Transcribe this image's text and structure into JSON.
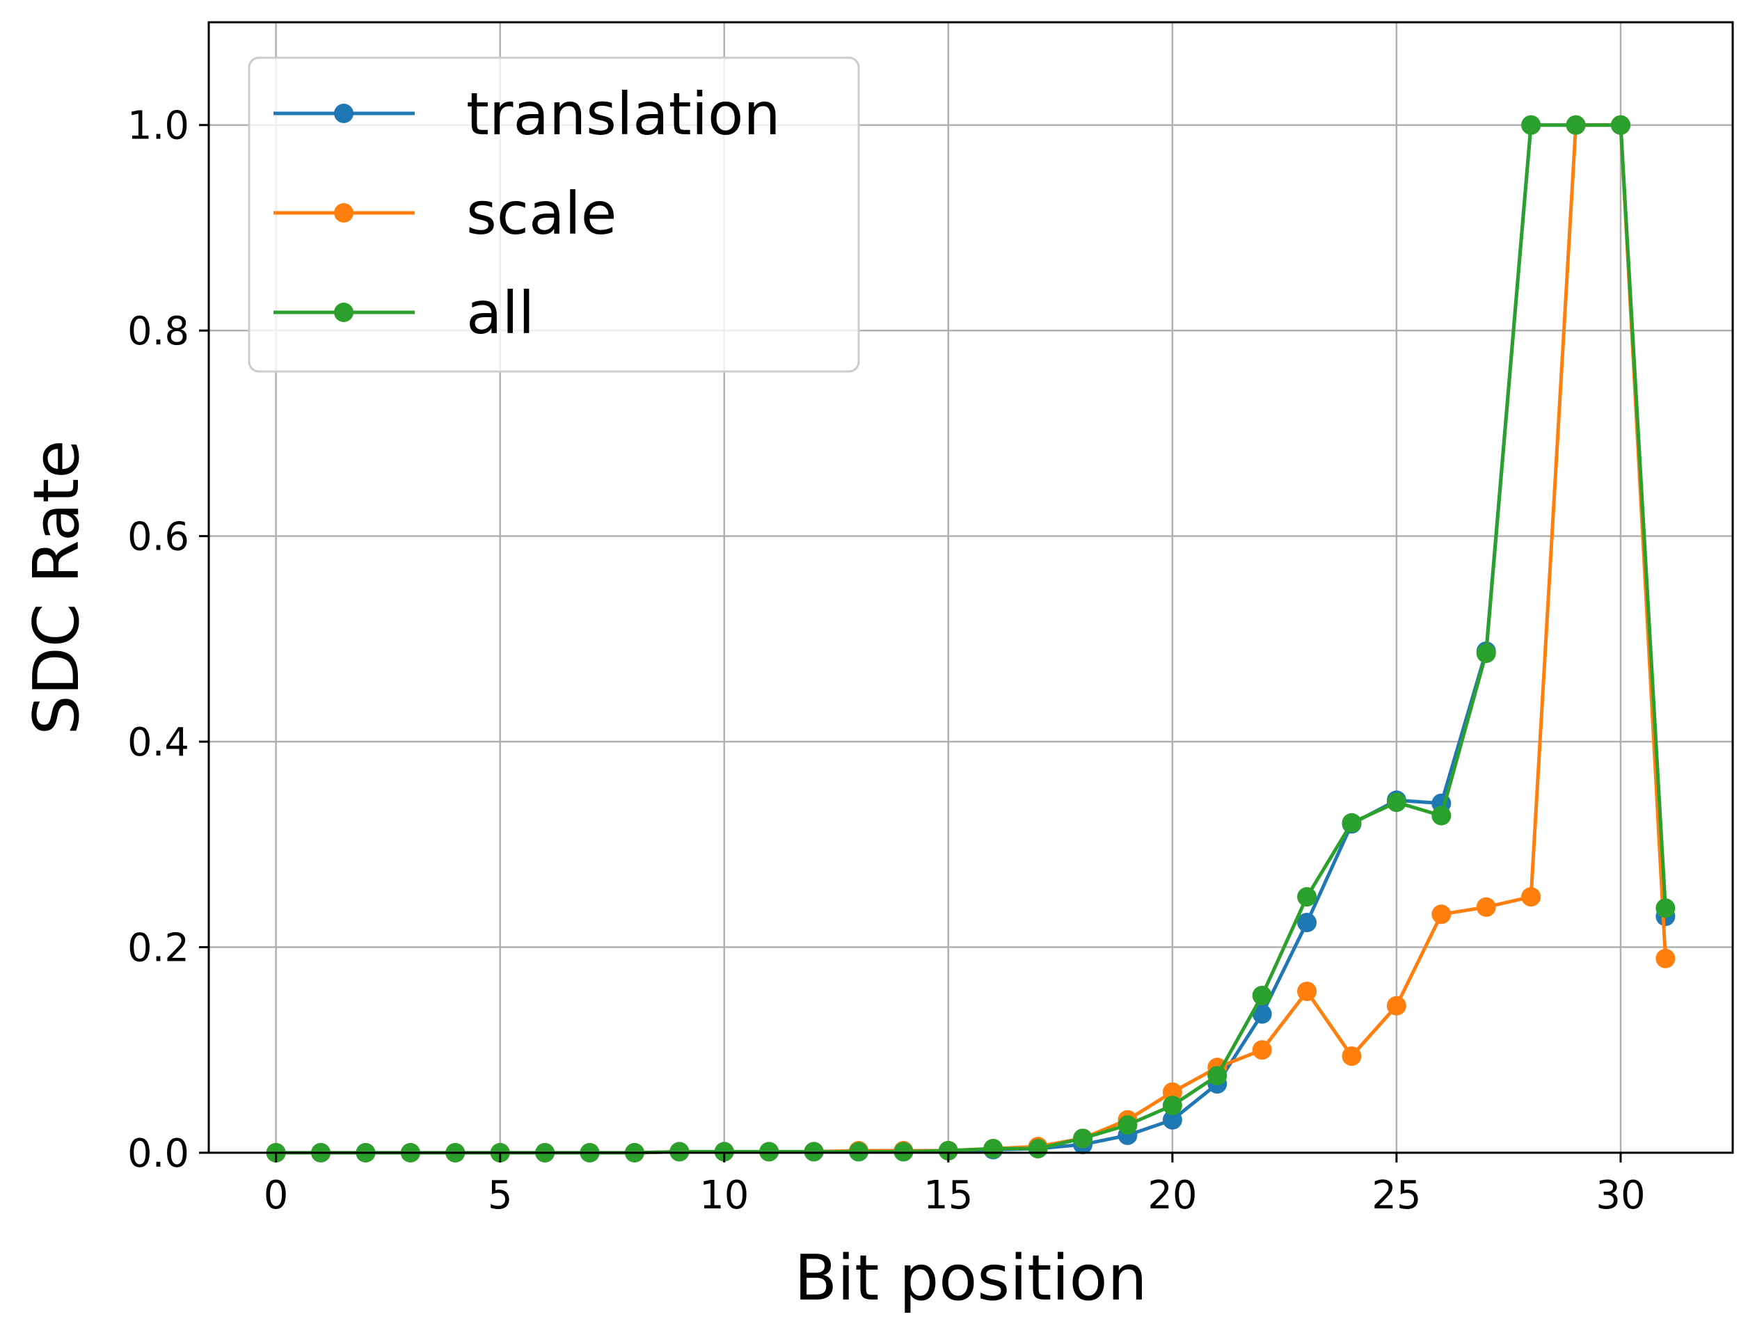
{
  "chart_data": {
    "type": "line",
    "title": "",
    "xlabel": "Bit position",
    "ylabel": "SDC Rate",
    "xlim": [
      -1.5,
      32.5
    ],
    "ylim": [
      0.0,
      1.1
    ],
    "xticks": [
      0,
      5,
      10,
      15,
      20,
      25,
      30
    ],
    "yticks": [
      0.0,
      0.2,
      0.4,
      0.6,
      0.8,
      1.0
    ],
    "xtick_labels": [
      "0",
      "5",
      "10",
      "15",
      "20",
      "25",
      "30"
    ],
    "ytick_labels": [
      "0.0",
      "0.2",
      "0.4",
      "0.6",
      "0.8",
      "1.0"
    ],
    "grid": true,
    "legend_position": "upper-left",
    "x": [
      0,
      1,
      2,
      3,
      4,
      5,
      6,
      7,
      8,
      9,
      10,
      11,
      12,
      13,
      14,
      15,
      16,
      17,
      18,
      19,
      20,
      21,
      22,
      23,
      24,
      25,
      26,
      27,
      28,
      29,
      30,
      31
    ],
    "series": [
      {
        "name": "translation",
        "color": "#1f77b4",
        "values": [
          0,
          0,
          0,
          0,
          0,
          0,
          0,
          0,
          0,
          0.001,
          0.001,
          0.001,
          0.001,
          0.001,
          0.001,
          0.002,
          0.003,
          0.004,
          0.008,
          0.017,
          0.032,
          0.067,
          0.135,
          0.224,
          0.32,
          0.343,
          0.34,
          0.488,
          1.0,
          1.0,
          1.0,
          0.23
        ]
      },
      {
        "name": "scale",
        "color": "#ff7f0e",
        "values": [
          0,
          0,
          0,
          0,
          0,
          0,
          0,
          0,
          0,
          0.001,
          0.001,
          0.001,
          0.001,
          0.002,
          0.002,
          0.002,
          0.004,
          0.006,
          0.014,
          0.032,
          0.059,
          0.083,
          0.1,
          0.157,
          0.094,
          0.143,
          0.232,
          0.239,
          0.249,
          1.0,
          1.0,
          0.189
        ]
      },
      {
        "name": "all",
        "color": "#2ca02c",
        "values": [
          0,
          0,
          0,
          0,
          0,
          0,
          0,
          0,
          0,
          0.001,
          0.001,
          0.001,
          0.001,
          0.001,
          0.001,
          0.002,
          0.004,
          0.004,
          0.014,
          0.027,
          0.046,
          0.075,
          0.153,
          0.249,
          0.321,
          0.341,
          0.328,
          0.486,
          1.0,
          1.0,
          1.0,
          0.238
        ]
      }
    ]
  }
}
